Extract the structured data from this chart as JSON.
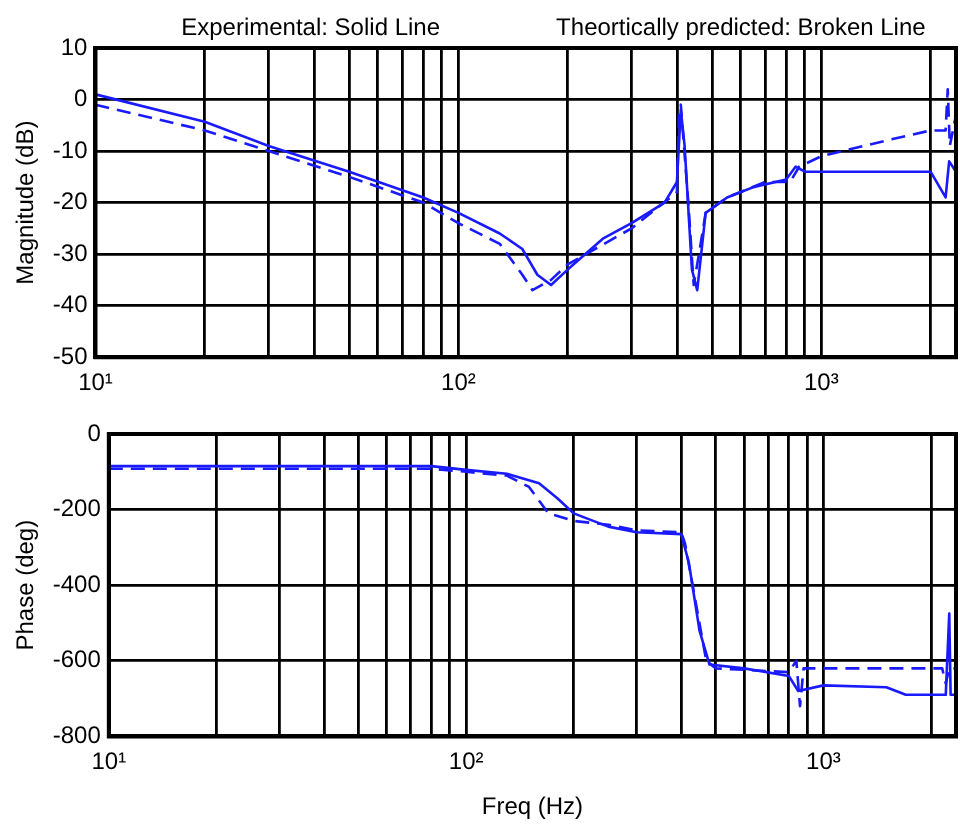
{
  "chart_data": [
    {
      "type": "line",
      "annotations": [
        "Experimental: Solid Line",
        "Theortically predicted: Broken Line"
      ],
      "ylabel": "Magnitude (dB)",
      "log": "x",
      "grid": true,
      "legend": false,
      "marker": "none",
      "xlim": [
        10,
        2350
      ],
      "xticks": [
        {
          "value": 10,
          "label": "10¹"
        },
        {
          "value": 20,
          "label": null
        },
        {
          "value": 30,
          "label": null
        },
        {
          "value": 40,
          "label": null
        },
        {
          "value": 50,
          "label": null
        },
        {
          "value": 60,
          "label": null
        },
        {
          "value": 70,
          "label": null
        },
        {
          "value": 80,
          "label": null
        },
        {
          "value": 90,
          "label": null
        },
        {
          "value": 100,
          "label": "10²"
        },
        {
          "value": 200,
          "label": null
        },
        {
          "value": 300,
          "label": null
        },
        {
          "value": 400,
          "label": null
        },
        {
          "value": 500,
          "label": null
        },
        {
          "value": 600,
          "label": null
        },
        {
          "value": 700,
          "label": null
        },
        {
          "value": 800,
          "label": null
        },
        {
          "value": 900,
          "label": null
        },
        {
          "value": 1000,
          "label": "10³"
        },
        {
          "value": 2000,
          "label": null
        }
      ],
      "ylim": [
        -50,
        10
      ],
      "yticks": [
        -50,
        -40,
        -30,
        -20,
        -10,
        0,
        10
      ],
      "series": [
        {
          "color": "#1a1aff",
          "line_style": "solid",
          "x": [
            10,
            20,
            30,
            50,
            80,
            100,
            130,
            150,
            165,
            180,
            200,
            250,
            300,
            370,
            400,
            410,
            420,
            440,
            455,
            480,
            550,
            650,
            800,
            850,
            900,
            1200,
            2000,
            2200,
            2250,
            2350
          ],
          "values": [
            1,
            -4.3,
            -9,
            -14,
            -19,
            -22,
            -26,
            -29,
            -34,
            -36,
            -33,
            -27,
            -24,
            -20,
            -16,
            -2,
            -9,
            -33,
            -37,
            -22,
            -19,
            -17,
            -15.5,
            -13,
            -14,
            -14,
            -14,
            -19,
            -12,
            -14
          ]
        },
        {
          "color": "#1a1aff",
          "line_style": "dashed",
          "x": [
            10,
            20,
            30,
            50,
            80,
            100,
            130,
            150,
            160,
            180,
            200,
            300,
            400,
            405,
            410,
            430,
            445,
            460,
            480,
            550,
            700,
            820,
            870,
            1000,
            1500,
            2000,
            2200,
            2230,
            2260,
            2350
          ],
          "values": [
            -1,
            -6,
            -10,
            -15,
            -20,
            -24,
            -28,
            -34,
            -37,
            -35,
            -32,
            -25,
            -18,
            -3,
            -1,
            -20,
            -36,
            -30,
            -22,
            -19,
            -16,
            -16,
            -13,
            -11,
            -8,
            -6,
            -6,
            2,
            -9,
            -3
          ]
        }
      ]
    },
    {
      "type": "line",
      "xlabel": "Freq (Hz)",
      "ylabel": "Phase (deg)",
      "log": "x",
      "grid": true,
      "legend": false,
      "marker": "none",
      "xlim": [
        10,
        2350
      ],
      "xticks": [
        {
          "value": 10,
          "label": "10¹"
        },
        {
          "value": 20,
          "label": null
        },
        {
          "value": 30,
          "label": null
        },
        {
          "value": 40,
          "label": null
        },
        {
          "value": 50,
          "label": null
        },
        {
          "value": 60,
          "label": null
        },
        {
          "value": 70,
          "label": null
        },
        {
          "value": 80,
          "label": null
        },
        {
          "value": 90,
          "label": null
        },
        {
          "value": 100,
          "label": "10²"
        },
        {
          "value": 200,
          "label": null
        },
        {
          "value": 300,
          "label": null
        },
        {
          "value": 400,
          "label": null
        },
        {
          "value": 500,
          "label": null
        },
        {
          "value": 600,
          "label": null
        },
        {
          "value": 700,
          "label": null
        },
        {
          "value": 800,
          "label": null
        },
        {
          "value": 900,
          "label": null
        },
        {
          "value": 1000,
          "label": "10³"
        },
        {
          "value": 2000,
          "label": null
        }
      ],
      "ylim": [
        -800,
        0
      ],
      "yticks": [
        -800,
        -600,
        -400,
        -200,
        0
      ],
      "series": [
        {
          "color": "#1a1aff",
          "line_style": "solid",
          "x": [
            10,
            80,
            100,
            130,
            160,
            180,
            200,
            250,
            300,
            400,
            420,
            450,
            480,
            600,
            800,
            850,
            1000,
            1500,
            1700,
            2200,
            2250,
            2270,
            2350
          ],
          "values": [
            -85,
            -85,
            -95,
            -105,
            -130,
            -170,
            -210,
            -245,
            -260,
            -265,
            -340,
            -520,
            -610,
            -620,
            -640,
            -680,
            -665,
            -670,
            -690,
            -690,
            -475,
            -690,
            -690
          ]
        },
        {
          "color": "#1a1aff",
          "line_style": "dashed",
          "x": [
            10,
            80,
            100,
            130,
            150,
            170,
            200,
            250,
            300,
            400,
            410,
            440,
            470,
            500,
            800,
            840,
            860,
            880,
            1500,
            2150,
            2200,
            2250,
            2350
          ],
          "values": [
            -92,
            -92,
            -100,
            -110,
            -140,
            -210,
            -230,
            -240,
            -255,
            -260,
            -290,
            -450,
            -600,
            -620,
            -630,
            -600,
            -720,
            -620,
            -620,
            -620,
            -660,
            -620,
            -620
          ]
        }
      ]
    }
  ]
}
